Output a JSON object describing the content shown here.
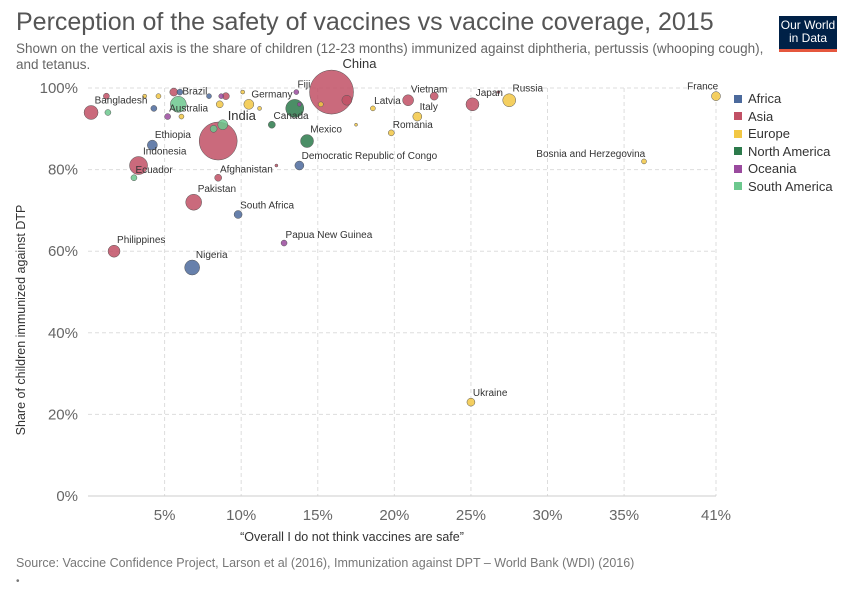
{
  "header": {
    "title": "Perception of the safety of vaccines vs vaccine coverage, 2015",
    "subtitle": "Shown on the vertical axis is the share of children (12-23 months) immunized against diphtheria, pertussis (whooping cough), and tetanus.",
    "logo_line1": "Our World",
    "logo_line2": "in Data"
  },
  "footer": {
    "source": "Source: Vaccine Confidence Project, Larson et al (2016), Immunization against DPT – World Bank (WDI) (2016)",
    "note": "•"
  },
  "colors": {
    "Africa": "#4C6A9C",
    "Asia": "#C15065",
    "Europe": "#F2C744",
    "North America": "#2C7A4B",
    "Oceania": "#9A4A9E",
    "South America": "#6CC88E",
    "grid": "#dddddd",
    "axis": "#cccccc"
  },
  "legend": [
    {
      "label": "Africa",
      "color": "#4C6A9C"
    },
    {
      "label": "Asia",
      "color": "#C15065"
    },
    {
      "label": "Europe",
      "color": "#F2C744"
    },
    {
      "label": "North America",
      "color": "#2C7A4B"
    },
    {
      "label": "Oceania",
      "color": "#9A4A9E"
    },
    {
      "label": "South America",
      "color": "#6CC88E"
    }
  ],
  "chart_data": {
    "type": "scatter",
    "xlabel": "“Overall I do not think vaccines are safe”",
    "ylabel": "Share of children immunized against DTP",
    "xlim": [
      0,
      41
    ],
    "ylim": [
      0,
      100
    ],
    "x_ticks": [
      5,
      10,
      15,
      20,
      25,
      30,
      35,
      41
    ],
    "x_tick_labels": [
      "5%",
      "10%",
      "15%",
      "20%",
      "25%",
      "30%",
      "35%",
      "41%"
    ],
    "y_ticks": [
      0,
      20,
      40,
      60,
      80,
      100
    ],
    "y_tick_labels": [
      "0%",
      "20%",
      "40%",
      "60%",
      "80%",
      "100%"
    ],
    "grid": true,
    "legend_position": "right",
    "points": [
      {
        "name": "China",
        "region": "Asia",
        "x": 15.9,
        "y": 99,
        "size": 22,
        "label": "China"
      },
      {
        "name": "India",
        "region": "Asia",
        "x": 8.5,
        "y": 87,
        "size": 19,
        "label": "India"
      },
      {
        "name": "Indonesia",
        "region": "Asia",
        "x": 3.3,
        "y": 81,
        "size": 9,
        "label": "Indonesia"
      },
      {
        "name": "Pakistan",
        "region": "Asia",
        "x": 6.9,
        "y": 72,
        "size": 8,
        "label": "Pakistan"
      },
      {
        "name": "Nigeria",
        "region": "Africa",
        "x": 6.8,
        "y": 56,
        "size": 7.5,
        "label": "Nigeria"
      },
      {
        "name": "Brazil",
        "region": "South America",
        "x": 5.9,
        "y": 96,
        "size": 8,
        "label": "Brazil"
      },
      {
        "name": "Bangladesh",
        "region": "Asia",
        "x": 0.2,
        "y": 94,
        "size": 7,
        "label": "Bangladesh"
      },
      {
        "name": "Philippines",
        "region": "Asia",
        "x": 1.7,
        "y": 60,
        "size": 6,
        "label": "Philippines"
      },
      {
        "name": "Mexico",
        "region": "North America",
        "x": 14.3,
        "y": 87,
        "size": 6.5,
        "label": "Mexico"
      },
      {
        "name": "Vietnam",
        "region": "Asia",
        "x": 20.9,
        "y": 97,
        "size": 5.5,
        "label": "Vietnam"
      },
      {
        "name": "Japan",
        "region": "Asia",
        "x": 25.1,
        "y": 96,
        "size": 6.5,
        "label": "Japan"
      },
      {
        "name": "Russia",
        "region": "Europe",
        "x": 27.5,
        "y": 97,
        "size": 6.5,
        "label": "Russia"
      },
      {
        "name": "Ethiopia",
        "region": "Africa",
        "x": 4.2,
        "y": 86,
        "size": 5,
        "label": "Ethiopia"
      },
      {
        "name": "Democratic Republic of Congo",
        "region": "Africa",
        "x": 13.8,
        "y": 81,
        "size": 4.5,
        "label": "Democratic Republic of Congo"
      },
      {
        "name": "Germany",
        "region": "Europe",
        "x": 10.5,
        "y": 96,
        "size": 5,
        "label": "Germany"
      },
      {
        "name": "France",
        "region": "Europe",
        "x": 41,
        "y": 98,
        "size": 4.5,
        "label": "France"
      },
      {
        "name": "Italy",
        "region": "Europe",
        "x": 21.5,
        "y": 93,
        "size": 4.5,
        "label": "Italy"
      },
      {
        "name": "Ukraine",
        "region": "Europe",
        "x": 25.0,
        "y": 23,
        "size": 4,
        "label": "Ukraine"
      },
      {
        "name": "South Africa",
        "region": "Africa",
        "x": 9.8,
        "y": 69,
        "size": 4,
        "label": "South Africa"
      },
      {
        "name": "Afghanistan",
        "region": "Asia",
        "x": 8.5,
        "y": 78,
        "size": 3.5,
        "label": "Afghanistan"
      },
      {
        "name": "Canada",
        "region": "North America",
        "x": 12.0,
        "y": 91,
        "size": 3.5,
        "label": "Canada"
      },
      {
        "name": "Australia",
        "region": "Oceania",
        "x": 5.2,
        "y": 93,
        "size": 3,
        "label": "Australia"
      },
      {
        "name": "Ecuador",
        "region": "South America",
        "x": 3.0,
        "y": 78,
        "size": 3,
        "label": "Ecuador"
      },
      {
        "name": "Romania",
        "region": "Europe",
        "x": 19.8,
        "y": 89,
        "size": 3,
        "label": "Romania"
      },
      {
        "name": "Latvia",
        "region": "Europe",
        "x": 18.6,
        "y": 95,
        "size": 2.5,
        "label": "Latvia"
      },
      {
        "name": "Fiji",
        "region": "Oceania",
        "x": 13.6,
        "y": 99,
        "size": 2.5,
        "label": "Fiji"
      },
      {
        "name": "Papua New Guinea",
        "region": "Oceania",
        "x": 12.8,
        "y": 62,
        "size": 3,
        "label": "Papua New Guinea"
      },
      {
        "name": "Bosnia and Herzegovina",
        "region": "Europe",
        "x": 36.3,
        "y": 82,
        "size": 2.5,
        "label": "Bosnia and Herzegovina"
      },
      {
        "name": "",
        "region": "North America",
        "x": 13.5,
        "y": 95,
        "size": 9,
        "label": ""
      },
      {
        "name": "",
        "region": "South America",
        "x": 8.8,
        "y": 91,
        "size": 5,
        "label": ""
      },
      {
        "name": "",
        "region": "South America",
        "x": 8.2,
        "y": 90,
        "size": 3.5,
        "label": ""
      },
      {
        "name": "",
        "region": "Asia",
        "x": 16.9,
        "y": 97,
        "size": 5,
        "label": ""
      },
      {
        "name": "",
        "region": "Asia",
        "x": 22.6,
        "y": 98,
        "size": 4,
        "label": ""
      },
      {
        "name": "",
        "region": "Asia",
        "x": 5.6,
        "y": 99,
        "size": 4,
        "label": ""
      },
      {
        "name": "",
        "region": "Asia",
        "x": 1.2,
        "y": 98,
        "size": 3,
        "label": ""
      },
      {
        "name": "",
        "region": "Asia",
        "x": 9.0,
        "y": 98,
        "size": 3.5,
        "label": ""
      },
      {
        "name": "",
        "region": "Asia",
        "x": 12.3,
        "y": 81,
        "size": 1.5,
        "label": ""
      },
      {
        "name": "",
        "region": "Asia",
        "x": 26.8,
        "y": 99,
        "size": 1.5,
        "label": ""
      },
      {
        "name": "",
        "region": "Africa",
        "x": 4.3,
        "y": 95,
        "size": 3,
        "label": ""
      },
      {
        "name": "",
        "region": "Africa",
        "x": 6.0,
        "y": 99,
        "size": 3,
        "label": ""
      },
      {
        "name": "",
        "region": "Africa",
        "x": 7.9,
        "y": 98,
        "size": 2.5,
        "label": ""
      },
      {
        "name": "",
        "region": "South America",
        "x": 1.3,
        "y": 94,
        "size": 3,
        "label": ""
      },
      {
        "name": "",
        "region": "Europe",
        "x": 8.6,
        "y": 96,
        "size": 3.5,
        "label": ""
      },
      {
        "name": "",
        "region": "Europe",
        "x": 3.7,
        "y": 98,
        "size": 2,
        "label": ""
      },
      {
        "name": "",
        "region": "Europe",
        "x": 4.6,
        "y": 98,
        "size": 2.5,
        "label": ""
      },
      {
        "name": "",
        "region": "Europe",
        "x": 10.1,
        "y": 99,
        "size": 2,
        "label": ""
      },
      {
        "name": "",
        "region": "Europe",
        "x": 11.2,
        "y": 95,
        "size": 2,
        "label": ""
      },
      {
        "name": "",
        "region": "Europe",
        "x": 17.5,
        "y": 91,
        "size": 1.5,
        "label": ""
      },
      {
        "name": "",
        "region": "Europe",
        "x": 15.2,
        "y": 96,
        "size": 2.5,
        "label": ""
      },
      {
        "name": "",
        "region": "Europe",
        "x": 6.1,
        "y": 93,
        "size": 2.5,
        "label": ""
      },
      {
        "name": "",
        "region": "Oceania",
        "x": 8.7,
        "y": 98,
        "size": 2.5,
        "label": ""
      },
      {
        "name": "",
        "region": "Oceania",
        "x": 13.8,
        "y": 96,
        "size": 2,
        "label": ""
      }
    ]
  }
}
